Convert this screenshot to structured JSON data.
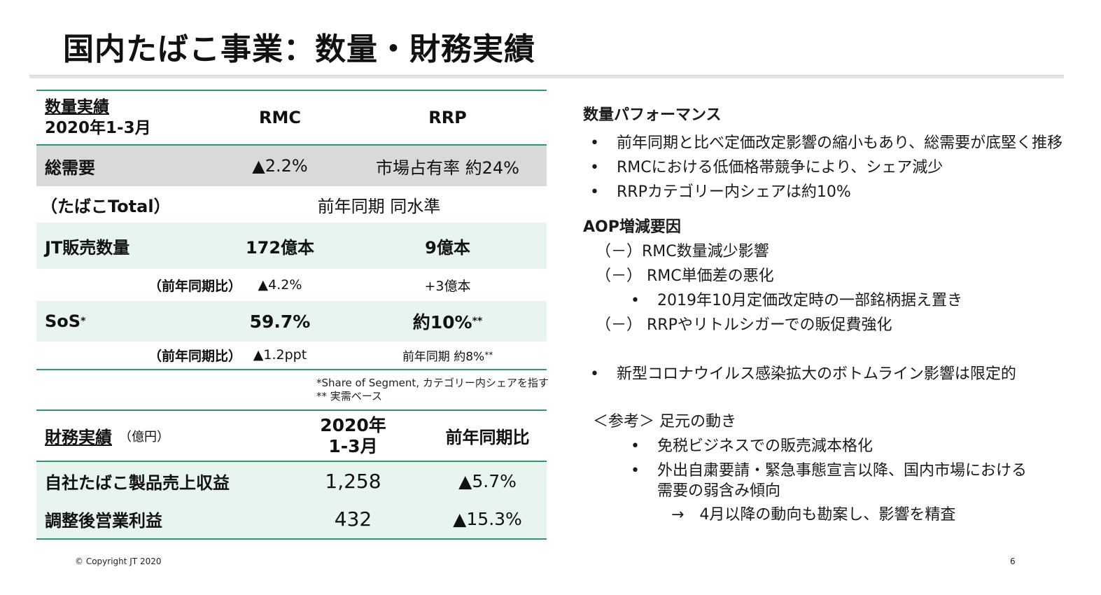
{
  "title": "国内たばこ事業：数量・財務実績",
  "volume_table": {
    "header": {
      "label_line1": "数量実績",
      "label_line2": "2020年1-3月",
      "col_rmc": "RMC",
      "col_rrp": "RRP"
    },
    "total_demand": {
      "label": "総需要",
      "rmc": "▲2.2%",
      "rrp": "市場占有率 約24%"
    },
    "tobacco_total": {
      "label": "（たばこTotal）",
      "value": "前年同期 同水準"
    },
    "jt_volume": {
      "label": "JT販売数量",
      "rmc": "172億本",
      "rrp": "9億本"
    },
    "jt_volume_yoy": {
      "label": "（前年同期比）",
      "rmc": "▲4.2%",
      "rrp": "+3億本"
    },
    "sos": {
      "label": "SoS",
      "label_sup": "*",
      "rmc": "59.7%",
      "rrp": "約10%",
      "rrp_sup": "**"
    },
    "sos_yoy": {
      "label": "（前年同期比）",
      "rmc": "▲1.2ppt",
      "rrp": "前年同期 約8%",
      "rrp_sup": "**"
    },
    "notes": [
      "*Share of Segment, カテゴリー内シェアを指す",
      "** 実需ベース"
    ]
  },
  "finance_table": {
    "header": {
      "label": "財務実績",
      "unit": "（億円）",
      "col_period_line1": "2020年",
      "col_period_line2": "1-3月",
      "col_yoy": "前年同期比"
    },
    "rows": [
      {
        "label": "自社たばこ製品売上収益",
        "value": "1,258",
        "yoy": "▲5.7%"
      },
      {
        "label": "調整後営業利益",
        "value": "432",
        "yoy": "▲15.3%"
      }
    ]
  },
  "right": {
    "volume_perf": {
      "heading": "数量パフォーマンス",
      "bullets": [
        "前年同期と比べ定価改定影響の縮小もあり、総需要が底堅く推移",
        "RMCにおける低価格帯競争により、シェア減少",
        "RRPカテゴリー内シェアは約10%"
      ]
    },
    "aop": {
      "heading": "AOP増減要因",
      "item1": "（－）RMC数量減少影響",
      "item2": "（－） RMC単価差の悪化",
      "item2_sub": "2019年10月定価改定時の一部銘柄据え置き",
      "item3": "（－） RRPやリトルシガーでの販促費強化"
    },
    "covid_bullet": "新型コロナウイルス感染拡大のボトムライン影響は限定的",
    "reference": {
      "heading": "＜参考＞ 足元の動き",
      "bullet1": "免税ビジネスでの販売減本格化",
      "bullet2_line1": "外出自粛要請・緊急事態宣言以降、国内市場における",
      "bullet2_line2": "需要の弱含み傾向",
      "arrow_line": "→　4月以降の動向も勘案し、影響を精査"
    },
    "bullet_symbol": "•"
  },
  "footer": {
    "copyright": "© Copyright JT 2020",
    "page_number": "6"
  },
  "colors": {
    "accent_green": "#2e9a6a",
    "mint": "#e8f4ee",
    "gray": "#d9d9d9"
  }
}
